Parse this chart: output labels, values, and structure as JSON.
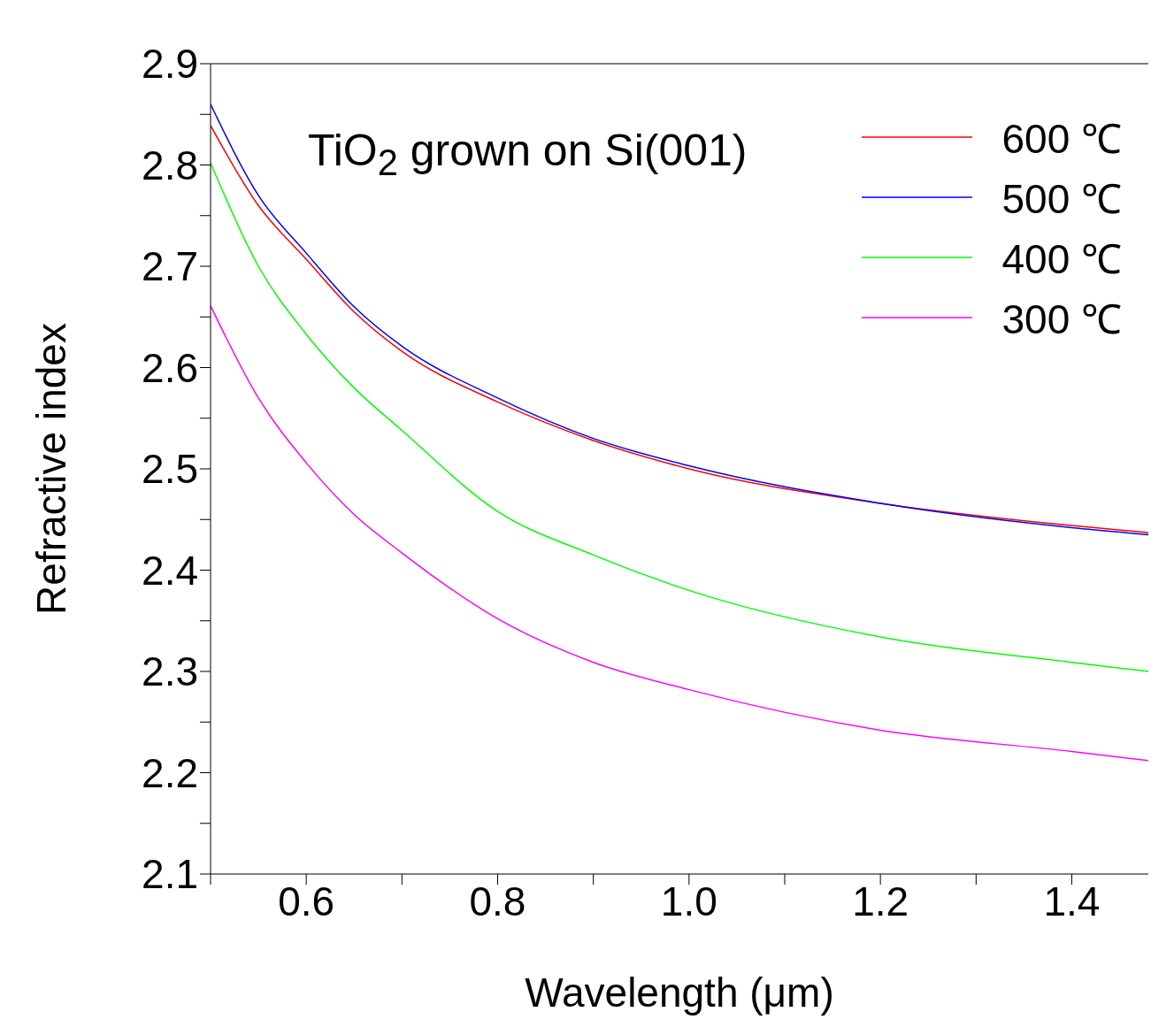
{
  "chart_data": {
    "type": "line",
    "xlabel": "Wavelength (μm)",
    "ylabel": "Refractive index",
    "annotations": [
      "TiO$_{2}$ grown on Si(001)"
    ],
    "x": [
      0.5,
      0.55,
      0.6,
      0.65,
      0.7,
      0.8,
      0.9,
      1.0,
      1.2,
      1.4,
      1.48
    ],
    "series": [
      {
        "name": "600 ℃",
        "color": "#ff0000",
        "values": [
          2.839,
          2.76,
          2.707,
          2.655,
          2.616,
          2.566,
          2.528,
          2.5,
          2.466,
          2.444,
          2.437
        ]
      },
      {
        "name": "500 ℃",
        "color": "#0000ff",
        "values": [
          2.86,
          2.77,
          2.713,
          2.66,
          2.621,
          2.57,
          2.53,
          2.503,
          2.466,
          2.442,
          2.435
        ]
      },
      {
        "name": "400 ℃",
        "color": "#00ff00",
        "values": [
          2.802,
          2.7,
          2.633,
          2.58,
          2.538,
          2.458,
          2.415,
          2.38,
          2.334,
          2.309,
          2.3
        ]
      },
      {
        "name": "300 ℃",
        "color": "#ff00ff",
        "values": [
          2.661,
          2.57,
          2.506,
          2.455,
          2.417,
          2.352,
          2.309,
          2.282,
          2.242,
          2.221,
          2.212
        ]
      }
    ],
    "xlim": [
      0.5,
      1.48
    ],
    "ylim": [
      2.1,
      2.9
    ],
    "xticks": [
      {
        "value": 0.5,
        "label": null
      },
      0.6,
      {
        "value": 0.7,
        "label": null
      },
      0.8,
      {
        "value": 0.9,
        "label": null
      },
      {
        "value": 1.0,
        "label": "1.0"
      },
      {
        "value": 1.1,
        "label": null
      },
      1.2,
      {
        "value": 1.3,
        "label": null
      },
      1.4
    ],
    "yticks": [
      2.1,
      {
        "value": 2.15,
        "label": null
      },
      2.2,
      {
        "value": 2.25,
        "label": null
      },
      2.3,
      {
        "value": 2.35,
        "label": null
      },
      2.4,
      {
        "value": 2.45,
        "label": null
      },
      2.5,
      {
        "value": 2.55,
        "label": null
      },
      2.6,
      {
        "value": 2.65,
        "label": null
      },
      2.7,
      {
        "value": 2.75,
        "label": null
      },
      2.8,
      {
        "value": 2.85,
        "label": null
      },
      2.9
    ],
    "grid": false,
    "legend": "top right",
    "marker": "none",
    "line_style": "solid"
  }
}
